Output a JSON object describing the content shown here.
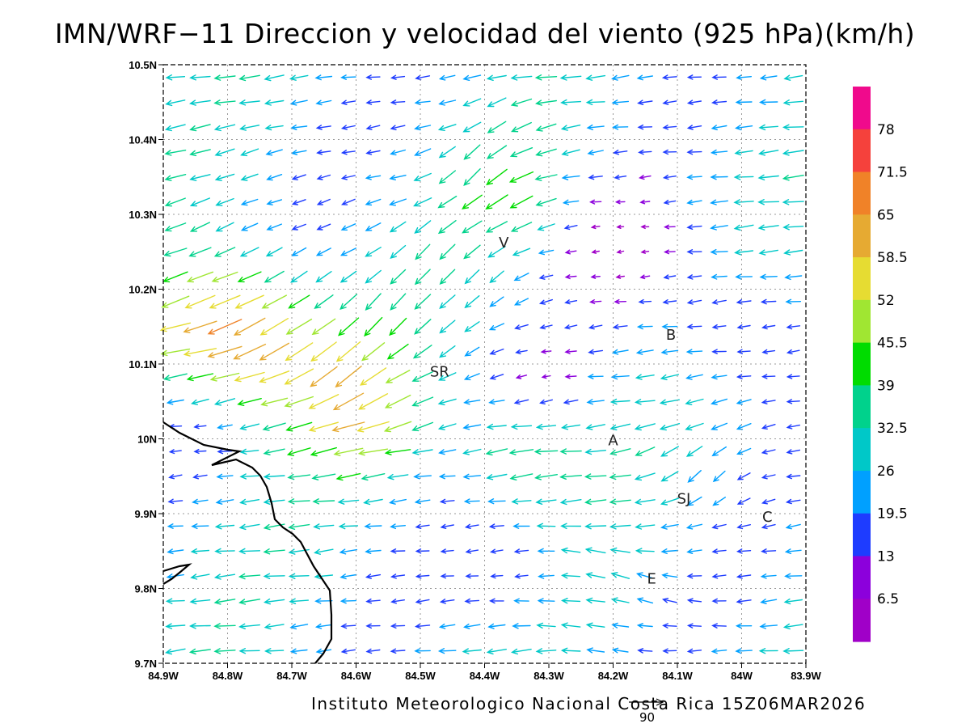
{
  "title": "IMN/WRF−11 Direccion y velocidad del viento (925 hPa)(km/h)",
  "credit": "Instituto Meteorologico Nacional Costa Rica 15Z06MAR2026",
  "reference_vector": {
    "value": "90"
  },
  "axes": {
    "lon_ticks": [
      "84.9W",
      "84.8W",
      "84.7W",
      "84.6W",
      "84.5W",
      "84.4W",
      "84.3W",
      "84.2W",
      "84.1W",
      "84W",
      "83.9W"
    ],
    "lat_ticks": [
      "10.5N",
      "10.4N",
      "10.3N",
      "10.2N",
      "10.1N",
      "10N",
      "9.9N",
      "9.8N",
      "9.7N"
    ],
    "lon_range": [
      -84.9,
      -83.9
    ],
    "lat_range": [
      9.7,
      10.5
    ]
  },
  "places": [
    {
      "label": "V",
      "lon": -84.37,
      "lat": 10.263
    },
    {
      "label": "B",
      "lon": -84.11,
      "lat": 10.14
    },
    {
      "label": "SR",
      "lon": -84.47,
      "lat": 10.091
    },
    {
      "label": "A",
      "lon": -84.2,
      "lat": 9.999
    },
    {
      "label": "SJ",
      "lon": -84.09,
      "lat": 9.921
    },
    {
      "label": "C",
      "lon": -83.96,
      "lat": 9.897
    },
    {
      "label": "E",
      "lon": -84.14,
      "lat": 9.814
    }
  ],
  "colorbar": {
    "labels": [
      "78",
      "71.5",
      "65",
      "58.5",
      "52",
      "45.5",
      "39",
      "32.5",
      "26",
      "19.5",
      "13",
      "6.5"
    ],
    "colors": [
      "#f00a8c",
      "#f5413c",
      "#f08228",
      "#e6aa32",
      "#e6dc32",
      "#a0e632",
      "#00dc00",
      "#00d28c",
      "#00c8c8",
      "#00a0ff",
      "#1e3cff",
      "#8c00dc",
      "#a000c8"
    ]
  },
  "coastline_color": "#000000",
  "grid": true
}
